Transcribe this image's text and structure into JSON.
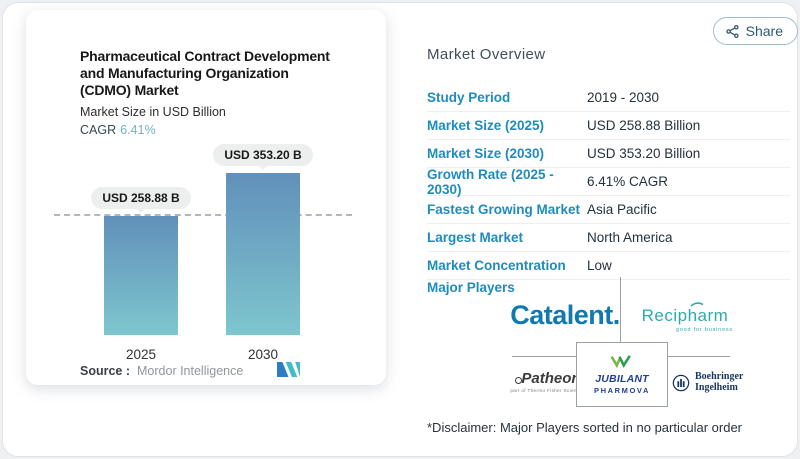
{
  "share": {
    "label": "Share"
  },
  "chart_data": {
    "type": "bar",
    "title": "Pharmaceutical Contract Development and Manufacturing Organization (CDMO) Market",
    "title_lines": [
      "Pharmaceutical Contract Development",
      "and Manufacturing Organization",
      "(CDMO) Market"
    ],
    "subtitle": "Market Size in USD Billion",
    "cagr_label": "CAGR",
    "cagr_value": "6.41%",
    "categories": [
      "2025",
      "2030"
    ],
    "values": [
      258.88,
      353.2
    ],
    "value_labels": [
      "USD 258.88 B",
      "USD 353.20 B"
    ],
    "unit": "USD Billion",
    "reference_line_value": 258.88,
    "ylim": [
      0,
      380
    ],
    "grid": "off",
    "legend": "none",
    "source_label": "Source :",
    "source_name": "Mordor Intelligence"
  },
  "overview": {
    "heading": "Market Overview",
    "rows": [
      {
        "label": "Study Period",
        "value": "2019 - 2030"
      },
      {
        "label": "Market Size (2025)",
        "value": "USD 258.88 Billion"
      },
      {
        "label": "Market Size (2030)",
        "value": "USD 353.20 Billion"
      },
      {
        "label": "Growth Rate (2025 - 2030)",
        "value": "6.41% CAGR"
      },
      {
        "label": "Fastest Growing Market",
        "value": "Asia Pacific"
      },
      {
        "label": "Largest Market",
        "value": "North America"
      },
      {
        "label": "Market Concentration",
        "value": "Low"
      }
    ],
    "major_players_label": "Major Players",
    "players": {
      "catalent": "Catalent",
      "catalent_dot": ".",
      "recipharm": "Recipharm",
      "recipharm_tagline": "good for business",
      "patheon": "Patheon",
      "patheon_tagline": "part of Thermo Fisher Scientific",
      "jubilant_line1": "JUBILANT",
      "jubilant_line2": "PHARMOVA",
      "boehringer_line1": "Boehringer",
      "boehringer_line2": "Ingelheim"
    },
    "disclaimer": "*Disclaimer: Major Players sorted in no particular order"
  },
  "colors": {
    "label_blue": "#1e8cbd",
    "cagr_teal": "#6fb3c8",
    "bar_gradient_top": "#6190ba",
    "bar_gradient_bottom": "#7ec6ce",
    "catalent_blue": "#0f79b2",
    "recipharm_teal": "#2fa9ae",
    "jubilant_blue": "#223f94",
    "boehringer_navy": "#17365d",
    "patheon_gray": "#3c3c3e",
    "share_text": "#2e5a72"
  }
}
